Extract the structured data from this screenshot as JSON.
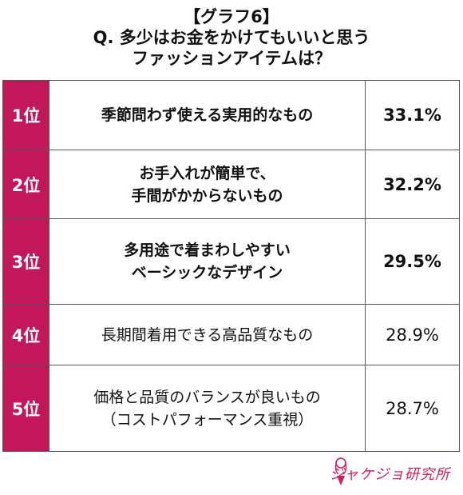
{
  "title": {
    "line1": "【グラフ6】",
    "line2": "Q. 多少はお金をかけてもいいと思う",
    "line3": "ファッションアイテムは？"
  },
  "rows": [
    {
      "rank": "1位",
      "label": [
        "季節問わず使える実用的なもの"
      ],
      "value": "33.1%"
    },
    {
      "rank": "2位",
      "label": [
        "お手入れが簡単で、",
        "手間がかからないもの"
      ],
      "value": "32.2%"
    },
    {
      "rank": "3位",
      "label": [
        "多用途で着まわしやすい",
        "ベーシックなデザイン"
      ],
      "value": "29.5%"
    },
    {
      "rank": "4位",
      "label": [
        "長期間着用できる高品質なもの"
      ],
      "value": "28.9%"
    },
    {
      "rank": "5位",
      "label": [
        "価格と品質のバランスが良いもの",
        "（コストパフォーマンス重視）"
      ],
      "value": "28.7%"
    }
  ],
  "logo": {
    "text": "ジャケジョ研究所"
  },
  "colors": {
    "rank_bg": "#c2185b",
    "logo": "#d81b60"
  }
}
